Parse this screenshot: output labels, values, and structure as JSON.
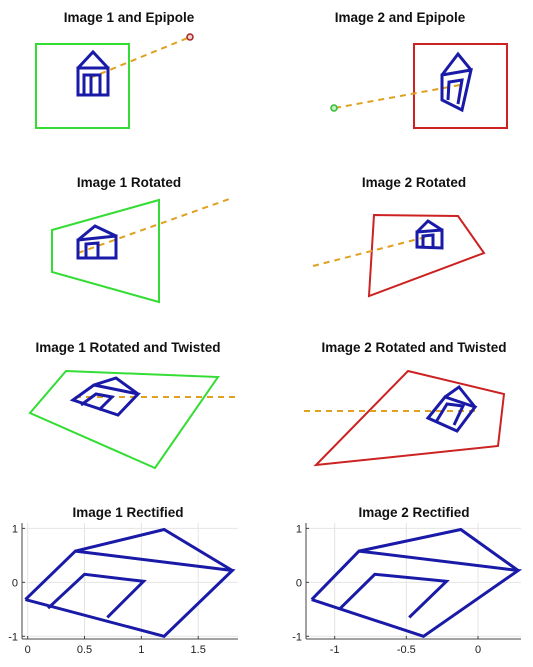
{
  "titles": {
    "p1": "Image 1 and Epipole",
    "p2": "Image 2 and Epipole",
    "p3": "Image 1 Rotated",
    "p4": "Image 2 Rotated",
    "p5": "Image 1 Rotated and Twisted",
    "p6": "Image 2 Rotated and Twisted",
    "p7": "Image 1 Rectified",
    "p8": "Image 2 Rectified"
  },
  "colors": {
    "image1_frame": "#33dd33",
    "image2_frame": "#cc2222",
    "house": "#1a1aa8",
    "epipolar_line": "#e0a020",
    "grid": "#e4e4e4"
  },
  "chart_data": [
    {
      "type": "line",
      "title": "Image 1 Rectified",
      "xlim": [
        -0.05,
        1.85
      ],
      "ylim": [
        -1.05,
        1.1
      ],
      "x_ticks": [
        "0",
        "0.5",
        "1",
        "1.5"
      ],
      "y_ticks": [
        "1",
        "0",
        "-1"
      ],
      "grid": true,
      "series": [
        {
          "x": [
            -0.02,
            0.42,
            1.8,
            1.2,
            -0.02
          ],
          "y": [
            -0.32,
            0.58,
            0.22,
            -1.0,
            -0.32
          ]
        },
        {
          "x": [
            0.42,
            1.2,
            1.8
          ],
          "y": [
            0.58,
            0.98,
            0.22
          ]
        },
        {
          "x": [
            0.18,
            0.5,
            1.02,
            0.7
          ],
          "y": [
            -0.48,
            0.15,
            0.02,
            -0.65
          ]
        }
      ]
    },
    {
      "type": "line",
      "title": "Image 2 Rectified",
      "xlim": [
        -1.2,
        0.3
      ],
      "ylim": [
        -1.05,
        1.1
      ],
      "x_ticks": [
        "-1",
        "-0.5",
        "0"
      ],
      "y_ticks": [
        "1",
        "0",
        "-1"
      ],
      "grid": true,
      "series": [
        {
          "x": [
            -1.16,
            -0.83,
            0.28,
            -0.38,
            -1.16
          ],
          "y": [
            -0.32,
            0.58,
            0.22,
            -1.0,
            -0.32
          ]
        },
        {
          "x": [
            -0.83,
            -0.12,
            0.28
          ],
          "y": [
            0.58,
            0.98,
            0.22
          ]
        },
        {
          "x": [
            -0.96,
            -0.72,
            -0.22,
            -0.48
          ],
          "y": [
            -0.48,
            0.15,
            0.02,
            -0.65
          ]
        }
      ]
    }
  ]
}
